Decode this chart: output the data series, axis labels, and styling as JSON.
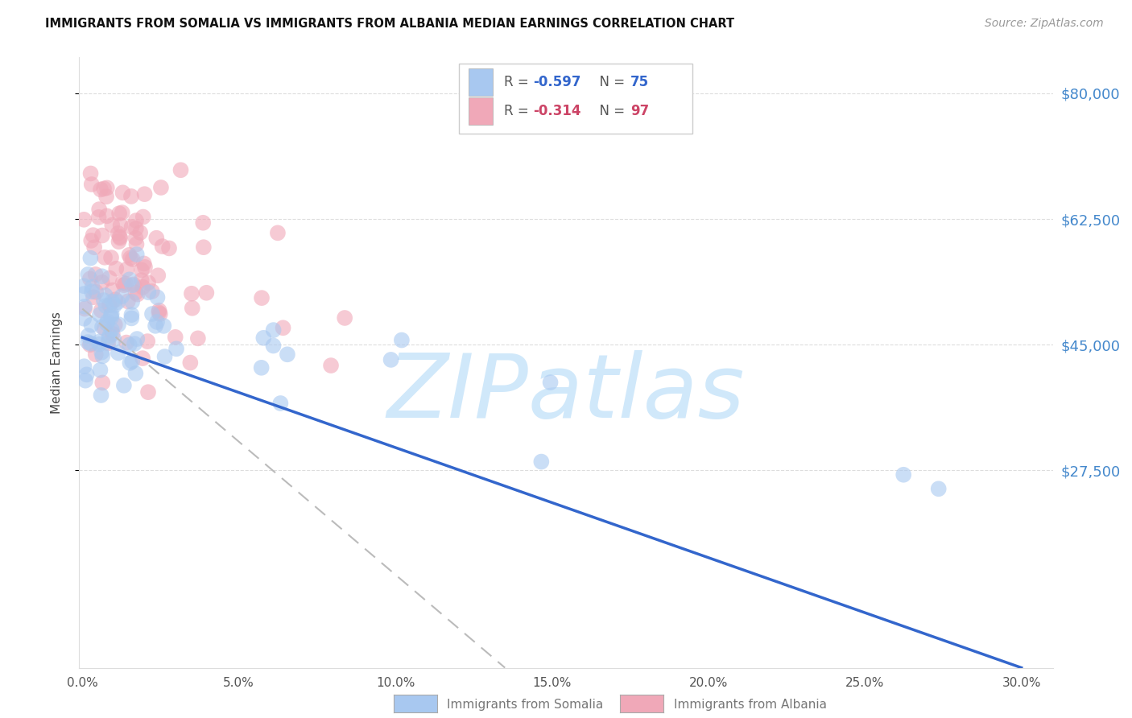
{
  "title": "IMMIGRANTS FROM SOMALIA VS IMMIGRANTS FROM ALBANIA MEDIAN EARNINGS CORRELATION CHART",
  "source": "Source: ZipAtlas.com",
  "ylabel": "Median Earnings",
  "xlabel_ticks": [
    "0.0%",
    "5.0%",
    "10.0%",
    "15.0%",
    "20.0%",
    "25.0%",
    "30.0%"
  ],
  "xlabel_vals": [
    0.0,
    0.05,
    0.1,
    0.15,
    0.2,
    0.25,
    0.3
  ],
  "ytick_labels": [
    "$80,000",
    "$62,500",
    "$45,000",
    "$27,500"
  ],
  "ytick_vals": [
    80000,
    62500,
    45000,
    27500
  ],
  "ylim": [
    0,
    85000
  ],
  "xlim": [
    -0.001,
    0.31
  ],
  "somalia_R": -0.597,
  "somalia_N": 75,
  "albania_R": -0.314,
  "albania_N": 97,
  "somalia_color": "#a8c8f0",
  "albania_color": "#f0a8b8",
  "somalia_line_color": "#3366cc",
  "albania_line_color": "#bbbbbb",
  "watermark_color": "#d0e8fa",
  "legend_somalia_text_color": "#3366cc",
  "legend_albania_text_color": "#cc4466",
  "bottom_legend_text_color": "#777777"
}
